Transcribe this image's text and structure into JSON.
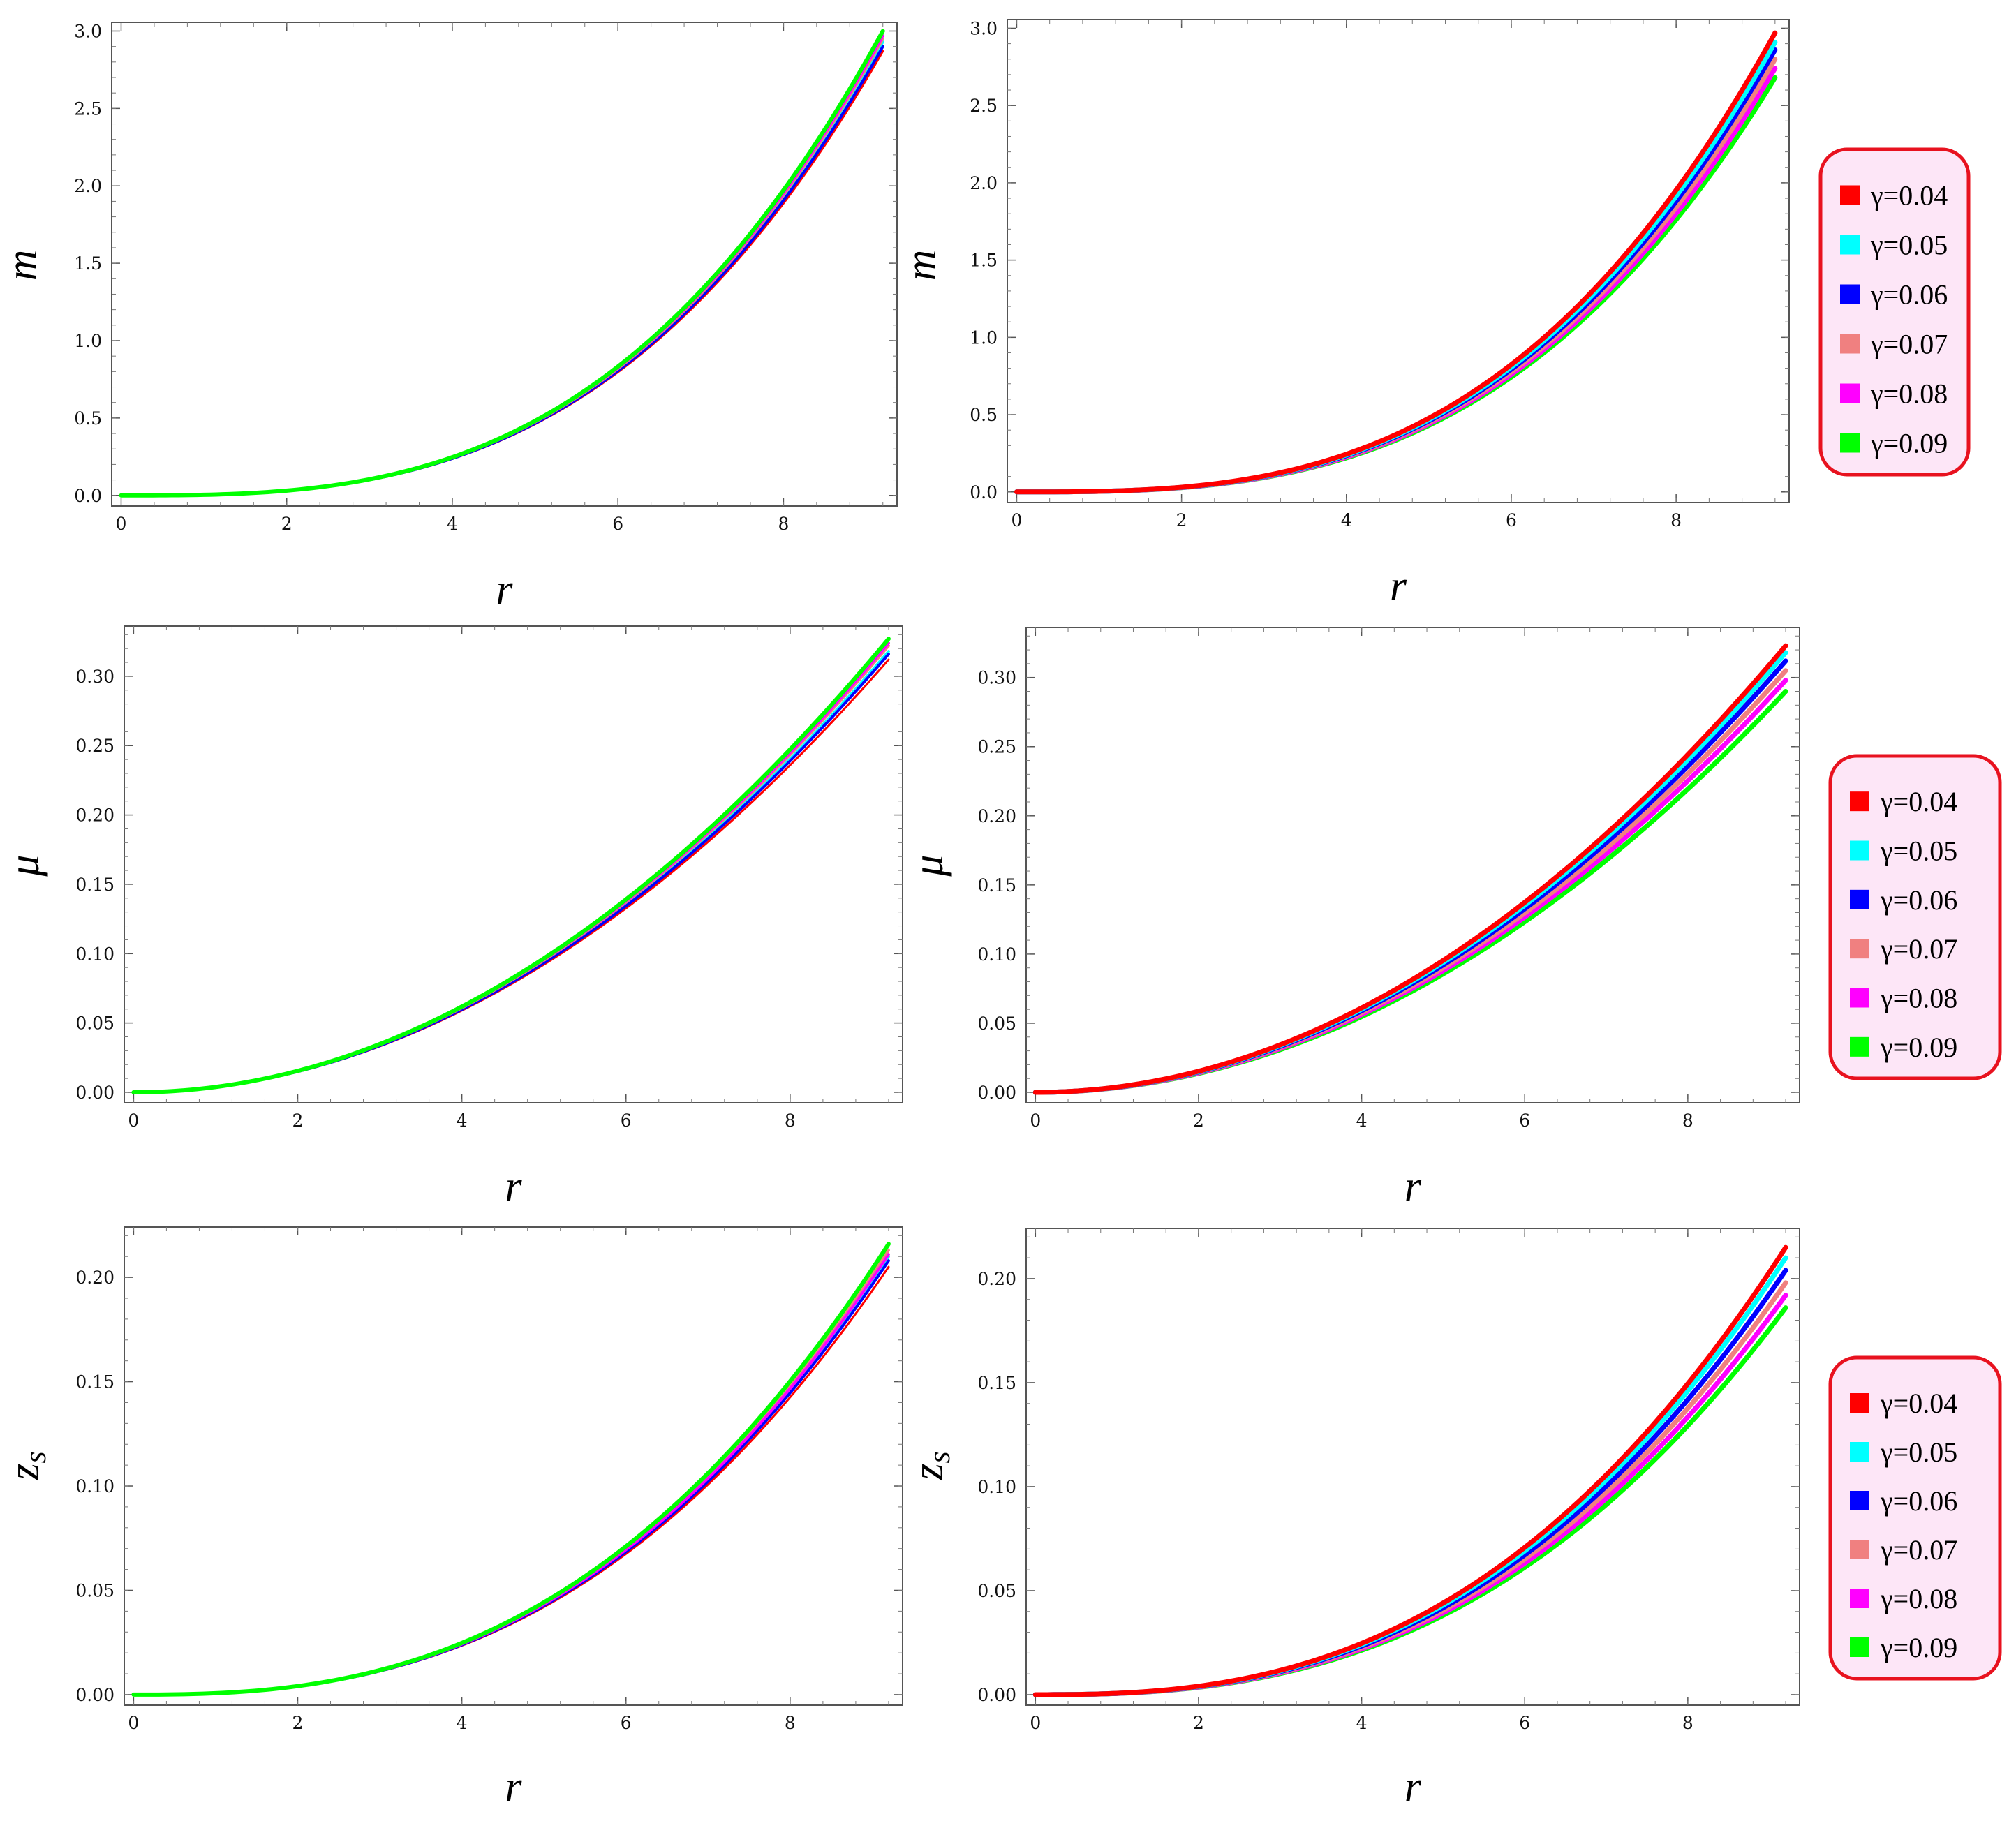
{
  "chart_data": [
    {
      "type": "line",
      "panel": "top-left",
      "xlabel": "r",
      "ylabel": "m",
      "xlim": [
        0,
        9.2
      ],
      "ylim": [
        0,
        3.0
      ],
      "xticks": [
        "0",
        "2",
        "4",
        "6",
        "8"
      ],
      "yticks": [
        "0.0",
        "0.5",
        "1.0",
        "1.5",
        "2.0",
        "2.5",
        "3.0"
      ],
      "legend": false,
      "r_end": 9.2,
      "series": [
        {
          "name": "γ=0.04",
          "color": "#ff0000",
          "end_value": 2.87
        },
        {
          "name": "γ=0.05",
          "color": "#00ffff",
          "end_value": 2.93
        },
        {
          "name": "γ=0.06",
          "color": "#0000ff",
          "end_value": 2.9
        },
        {
          "name": "γ=0.07",
          "color": "#f08080",
          "end_value": 2.95
        },
        {
          "name": "γ=0.08",
          "color": "#ff00ff",
          "end_value": 2.97
        },
        {
          "name": "γ=0.09",
          "color": "#00ff00",
          "end_value": 3.0
        }
      ]
    },
    {
      "type": "line",
      "panel": "top-right",
      "xlabel": "r",
      "ylabel": "m",
      "xlim": [
        0,
        9.2
      ],
      "ylim": [
        0,
        3.0
      ],
      "xticks": [
        "0",
        "2",
        "4",
        "6",
        "8"
      ],
      "yticks": [
        "0.0",
        "0.5",
        "1.0",
        "1.5",
        "2.0",
        "2.5",
        "3.0"
      ],
      "legend": true,
      "r_end": 9.2,
      "series": [
        {
          "name": "γ=0.04",
          "color": "#ff0000",
          "end_value": 2.97
        },
        {
          "name": "γ=0.05",
          "color": "#00ffff",
          "end_value": 2.91
        },
        {
          "name": "γ=0.06",
          "color": "#0000ff",
          "end_value": 2.86
        },
        {
          "name": "γ=0.07",
          "color": "#f08080",
          "end_value": 2.8
        },
        {
          "name": "γ=0.08",
          "color": "#ff00ff",
          "end_value": 2.74
        },
        {
          "name": "γ=0.09",
          "color": "#00ff00",
          "end_value": 2.68
        }
      ]
    },
    {
      "type": "line",
      "panel": "middle-left",
      "xlabel": "r",
      "ylabel": "μ",
      "xlim": [
        0,
        9.2
      ],
      "ylim": [
        0,
        0.33
      ],
      "xticks": [
        "0",
        "2",
        "4",
        "6",
        "8"
      ],
      "yticks": [
        "0.00",
        "0.05",
        "0.10",
        "0.15",
        "0.20",
        "0.25",
        "0.30"
      ],
      "legend": false,
      "r_end": 9.2,
      "series": [
        {
          "name": "γ=0.04",
          "color": "#ff0000",
          "end_value": 0.312
        },
        {
          "name": "γ=0.05",
          "color": "#00ffff",
          "end_value": 0.318
        },
        {
          "name": "γ=0.06",
          "color": "#0000ff",
          "end_value": 0.316
        },
        {
          "name": "γ=0.07",
          "color": "#f08080",
          "end_value": 0.322
        },
        {
          "name": "γ=0.08",
          "color": "#ff00ff",
          "end_value": 0.324
        },
        {
          "name": "γ=0.09",
          "color": "#00ff00",
          "end_value": 0.327
        }
      ]
    },
    {
      "type": "line",
      "panel": "middle-right",
      "xlabel": "r",
      "ylabel": "μ",
      "xlim": [
        0,
        9.2
      ],
      "ylim": [
        0,
        0.33
      ],
      "xticks": [
        "0",
        "2",
        "4",
        "6",
        "8"
      ],
      "yticks": [
        "0.00",
        "0.05",
        "0.10",
        "0.15",
        "0.20",
        "0.25",
        "0.30"
      ],
      "legend": true,
      "r_end": 9.2,
      "series": [
        {
          "name": "γ=0.04",
          "color": "#ff0000",
          "end_value": 0.323
        },
        {
          "name": "γ=0.05",
          "color": "#00ffff",
          "end_value": 0.318
        },
        {
          "name": "γ=0.06",
          "color": "#0000ff",
          "end_value": 0.312
        },
        {
          "name": "γ=0.07",
          "color": "#f08080",
          "end_value": 0.305
        },
        {
          "name": "γ=0.08",
          "color": "#ff00ff",
          "end_value": 0.298
        },
        {
          "name": "γ=0.09",
          "color": "#00ff00",
          "end_value": 0.29
        }
      ]
    },
    {
      "type": "line",
      "panel": "bottom-left",
      "xlabel": "r",
      "ylabel": "zs",
      "xlim": [
        0,
        9.2
      ],
      "ylim": [
        0,
        0.22
      ],
      "xticks": [
        "0",
        "2",
        "4",
        "6",
        "8"
      ],
      "yticks": [
        "0.00",
        "0.05",
        "0.10",
        "0.15",
        "0.20"
      ],
      "legend": false,
      "r_end": 9.2,
      "series": [
        {
          "name": "γ=0.04",
          "color": "#ff0000",
          "end_value": 0.205
        },
        {
          "name": "γ=0.05",
          "color": "#00ffff",
          "end_value": 0.21
        },
        {
          "name": "γ=0.06",
          "color": "#0000ff",
          "end_value": 0.208
        },
        {
          "name": "γ=0.07",
          "color": "#f08080",
          "end_value": 0.213
        },
        {
          "name": "γ=0.08",
          "color": "#ff00ff",
          "end_value": 0.211
        },
        {
          "name": "γ=0.09",
          "color": "#00ff00",
          "end_value": 0.216
        }
      ]
    },
    {
      "type": "line",
      "panel": "bottom-right",
      "xlabel": "r",
      "ylabel": "zs",
      "xlim": [
        0,
        9.2
      ],
      "ylim": [
        0,
        0.22
      ],
      "xticks": [
        "0",
        "2",
        "4",
        "6",
        "8"
      ],
      "yticks": [
        "0.00",
        "0.05",
        "0.10",
        "0.15",
        "0.20"
      ],
      "legend": true,
      "r_end": 9.2,
      "series": [
        {
          "name": "γ=0.04",
          "color": "#ff0000",
          "end_value": 0.215
        },
        {
          "name": "γ=0.05",
          "color": "#00ffff",
          "end_value": 0.21
        },
        {
          "name": "γ=0.06",
          "color": "#0000ff",
          "end_value": 0.204
        },
        {
          "name": "γ=0.07",
          "color": "#f08080",
          "end_value": 0.198
        },
        {
          "name": "γ=0.08",
          "color": "#ff00ff",
          "end_value": 0.192
        },
        {
          "name": "γ=0.09",
          "color": "#00ff00",
          "end_value": 0.186
        }
      ]
    }
  ],
  "legend_style": {
    "border_color": "#e8121f",
    "background_color": "#fde6f7"
  }
}
